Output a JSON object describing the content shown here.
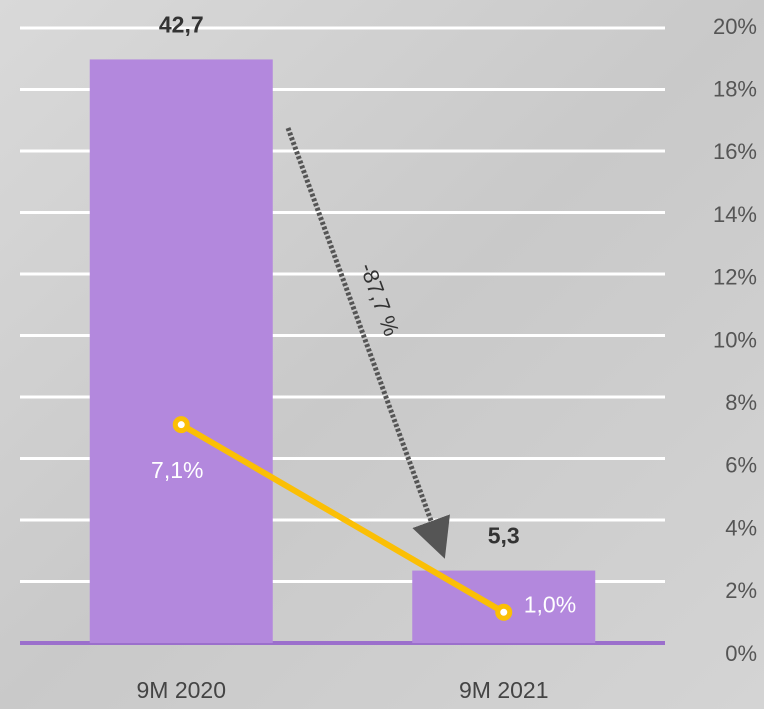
{
  "chart_data": {
    "type": "bar",
    "categories": [
      "9M 2020",
      "9M 2021"
    ],
    "ylim": [
      0,
      45
    ],
    "series": [
      {
        "type": "bar",
        "color": "#b388dd",
        "values": [
          42.7,
          5.3
        ],
        "value_labels": [
          "42,7",
          "5,3"
        ]
      },
      {
        "type": "line",
        "axis": "y2",
        "color": "#fbbf05",
        "values": [
          7.1,
          1.0
        ],
        "value_labels": [
          "7,1%",
          "1,0%"
        ]
      }
    ],
    "y2lim": [
      0,
      20
    ],
    "y2ticks": [
      {
        "value": 0,
        "label": "0%"
      },
      {
        "value": 2,
        "label": "2%"
      },
      {
        "value": 4,
        "label": "4%"
      },
      {
        "value": 6,
        "label": "6%"
      },
      {
        "value": 8,
        "label": "8%"
      },
      {
        "value": 10,
        "label": "10%"
      },
      {
        "value": 12,
        "label": "12%"
      },
      {
        "value": 14,
        "label": "14%"
      },
      {
        "value": 16,
        "label": "16%"
      },
      {
        "value": 18,
        "label": "18%"
      },
      {
        "value": 20,
        "label": "20%"
      }
    ],
    "grid": true,
    "annotation": "-87,7 %"
  }
}
